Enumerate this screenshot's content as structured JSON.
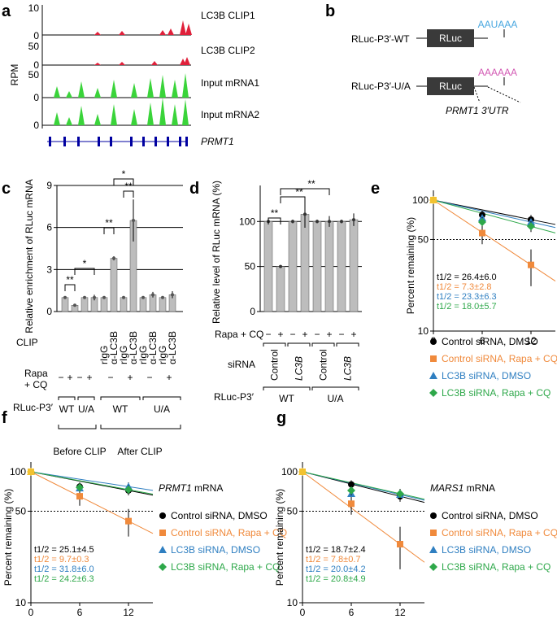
{
  "panel_labels": {
    "a": "a",
    "b": "b",
    "c": "c",
    "d": "d",
    "e": "e",
    "f": "f",
    "g": "g"
  },
  "colors": {
    "black": "#000000",
    "orange": "#f08a3c",
    "blue": "#2f7fc1",
    "green": "#2ea84a",
    "yellow": "#f2c230",
    "clip": "#e0203a",
    "input": "#3ad43a",
    "gene": "#0000a0",
    "bar": "#bdbdbd",
    "box": "#3a3a3a",
    "seq_wt": "#4aa8e0",
    "seq_ua": "#d35ab4"
  },
  "panel_a": {
    "ylabel": "RPM",
    "gene": "PRMT1",
    "tracks": [
      {
        "label": "LC3B CLIP1",
        "ticks": [
          "10",
          "0"
        ]
      },
      {
        "label": "LC3B CLIP2",
        "ticks": [
          "50",
          "0"
        ]
      },
      {
        "label": "Input mRNA1",
        "ticks": [
          "50",
          "0"
        ]
      },
      {
        "label": "Input mRNA2",
        "ticks": [
          "50",
          "0"
        ]
      }
    ],
    "top_tick": "10"
  },
  "panel_b": {
    "wt_label": "RLuc-P3′-WT",
    "ua_label": "RLuc-P3′-U/A",
    "box_label": "RLuc",
    "wt_seq": "AAUAAA",
    "ua_seq": "AAAAAA",
    "utr_label": "PRMT1 3′UTR"
  },
  "chart_data": [
    {
      "panel": "c",
      "type": "bar",
      "ylabel": "Relative enrichment of RLuc mRNA",
      "yticks": [
        "0",
        "3",
        "6",
        "9"
      ],
      "ylim": [
        0,
        9
      ],
      "values": [
        1.0,
        0.45,
        1.0,
        1.0,
        1.0,
        3.8,
        1.0,
        6.5,
        1.0,
        1.2,
        1.0,
        1.2
      ],
      "errors": [
        0.1,
        0.1,
        0.1,
        0.2,
        0.05,
        0.15,
        0.05,
        1.5,
        0.05,
        0.2,
        0.05,
        0.25
      ],
      "clip": [
        "rIgG",
        "α-LC3B",
        "rIgG",
        "α-LC3B",
        "rIgG",
        "α-LC3B",
        "rIgG",
        "α-LC3B"
      ],
      "rapa": [
        "−",
        "+",
        "−",
        "+",
        "−",
        "+",
        "−",
        "+"
      ],
      "construct": [
        "WT",
        "U/A",
        "WT",
        "U/A"
      ],
      "row_labels": {
        "clip": "CLIP",
        "rapa": "Rapa + CQ",
        "construct": "RLuc-P3′"
      },
      "groups": [
        "Before CLIP",
        "After CLIP"
      ],
      "sig": [
        "**",
        "*",
        "**",
        "**",
        "*"
      ]
    },
    {
      "panel": "d",
      "type": "bar",
      "ylabel": "Relative level of RLuc mRNA (%)",
      "yticks": [
        "0",
        "50",
        "100"
      ],
      "ylim": [
        0,
        140
      ],
      "values": [
        100,
        50,
        100,
        108,
        100,
        100,
        100,
        102
      ],
      "errors": [
        2,
        1,
        2,
        15,
        2,
        6,
        2,
        7
      ],
      "rapa": [
        "−",
        "+",
        "−",
        "+",
        "−",
        "+",
        "−",
        "+"
      ],
      "sirna": [
        "Control",
        "LC3B",
        "Control",
        "LC3B"
      ],
      "construct": [
        "WT",
        "U/A"
      ],
      "row_labels": {
        "rapa": "Rapa + CQ",
        "sirna": "siRNA",
        "construct": "RLuc-P3′"
      },
      "sig": [
        "**",
        "**",
        "**"
      ]
    },
    {
      "panel": "e",
      "type": "line",
      "ylabel": "Percent remaining (%)",
      "yticks": [
        "10",
        "50",
        "100"
      ],
      "xticks": [
        "0",
        "6",
        "12"
      ],
      "log_y": true,
      "series": [
        {
          "name": "Control siRNA, DMSO",
          "half": "t1/2 = 26.4±6.0",
          "values": [
            100,
            77,
            71
          ]
        },
        {
          "name": "Control siRNA, Rapa + CQ",
          "half": "t1/2 = 7.3±2.8",
          "values": [
            100,
            56,
            32
          ]
        },
        {
          "name": "LC3B siRNA, DMSO",
          "half": "t1/2 = 23.3±6.3",
          "values": [
            100,
            73,
            68
          ]
        },
        {
          "name": "LC3B siRNA, Rapa + CQ",
          "half": "t1/2 = 18.0±5.7",
          "values": [
            100,
            68,
            63
          ]
        }
      ]
    },
    {
      "panel": "f",
      "type": "line",
      "title": "PRMT1 mRNA",
      "ylabel": "Percent remaining (%)",
      "yticks": [
        "10",
        "50",
        "100"
      ],
      "xticks": [
        "0",
        "6",
        "12"
      ],
      "log_y": true,
      "series": [
        {
          "name": "Control siRNA, DMSO",
          "half": "t1/2 = 25.1±4.5",
          "values": [
            100,
            77,
            72
          ]
        },
        {
          "name": "Control siRNA, Rapa + CQ",
          "half": "t1/2 = 9.7±0.3",
          "values": [
            100,
            65,
            42
          ]
        },
        {
          "name": "LC3B siRNA, DMSO",
          "half": "t1/2 = 31.8±6.0",
          "values": [
            100,
            75,
            77
          ]
        },
        {
          "name": "LC3B siRNA, Rapa + CQ",
          "half": "t1/2 = 24.2±6.3",
          "values": [
            100,
            76,
            73
          ]
        }
      ]
    },
    {
      "panel": "g",
      "type": "line",
      "title": "MARS1 mRNA",
      "ylabel": "Percent remaining (%)",
      "yticks": [
        "10",
        "50",
        "100"
      ],
      "xticks": [
        "0",
        "6",
        "12"
      ],
      "log_y": true,
      "series": [
        {
          "name": "Control siRNA, DMSO",
          "half": "t1/2 = 18.7±2.4",
          "values": [
            100,
            80,
            65
          ]
        },
        {
          "name": "Control siRNA, Rapa + CQ",
          "half": "t1/2 = 7.8±0.7",
          "values": [
            100,
            57,
            28
          ]
        },
        {
          "name": "LC3B siRNA, DMSO",
          "half": "t1/2 = 20.0±4.2",
          "values": [
            100,
            68,
            67
          ]
        },
        {
          "name": "LC3B siRNA, Rapa + CQ",
          "half": "t1/2 = 20.8±4.9",
          "values": [
            100,
            72,
            68
          ]
        }
      ]
    }
  ]
}
